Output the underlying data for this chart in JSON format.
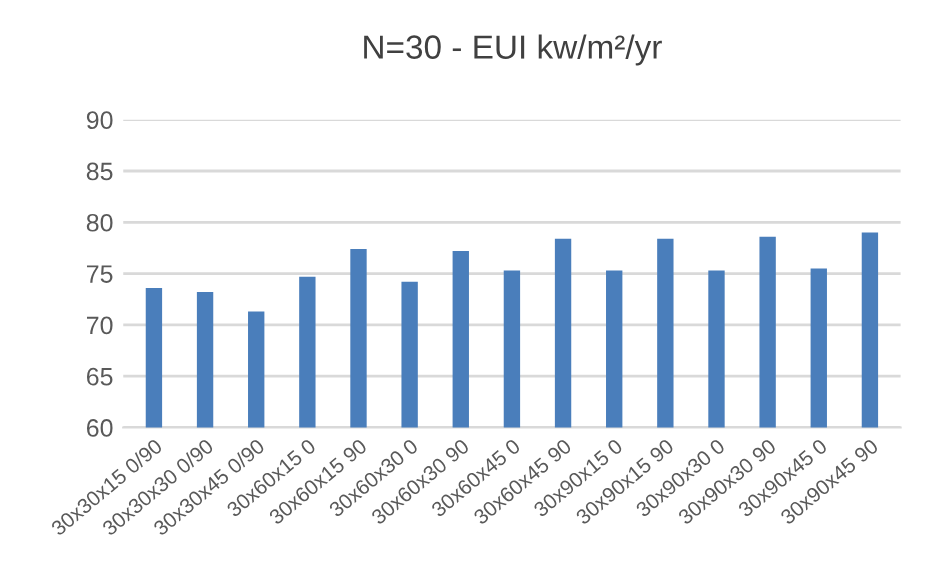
{
  "chart_data": {
    "type": "bar",
    "title": "N=30 - EUI kw/m²/yr",
    "categories": [
      "30x30x15 0/90",
      "30x30x30 0/90",
      "30x30x45 0/90",
      "30x60x15 0",
      "30x60x15 90",
      "30x60x30 0",
      "30x60x30 90",
      "30x60x45 0",
      "30x60x45 90",
      "30x90x15 0",
      "30x90x15 90",
      "30x90x30 0",
      "30x90x30 90",
      "30x90x45 0",
      "30x90x45 90"
    ],
    "values": [
      73.6,
      73.2,
      71.3,
      74.7,
      77.4,
      74.2,
      77.2,
      75.3,
      78.4,
      75.3,
      78.4,
      75.3,
      78.6,
      75.5,
      79.0
    ],
    "color": "#4a7ebb",
    "ylim": [
      60,
      90
    ],
    "yticks": [
      60,
      65,
      70,
      75,
      80,
      85,
      90
    ],
    "grid": "y"
  }
}
